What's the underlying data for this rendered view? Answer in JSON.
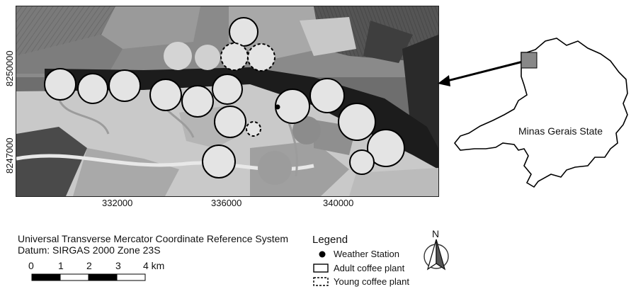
{
  "map": {
    "y_ticks": [
      "8250000",
      "8247000"
    ],
    "x_ticks": [
      "332000",
      "336000",
      "340000"
    ]
  },
  "inset": {
    "state_label": "Minas Gerais State"
  },
  "crs": {
    "line1": "Universal Transverse Mercator Coordinate Reference System",
    "line2": "Datum: SIRGAS 2000 Zone 23S"
  },
  "scale_bar": {
    "labels": [
      "0",
      "1",
      "2",
      "3",
      "4 km"
    ]
  },
  "legend": {
    "title": "Legend",
    "weather_station": "Weather Station",
    "adult": "Adult coffee plant",
    "young": "Young coffee plant"
  },
  "north_arrow": {
    "label": "N"
  }
}
